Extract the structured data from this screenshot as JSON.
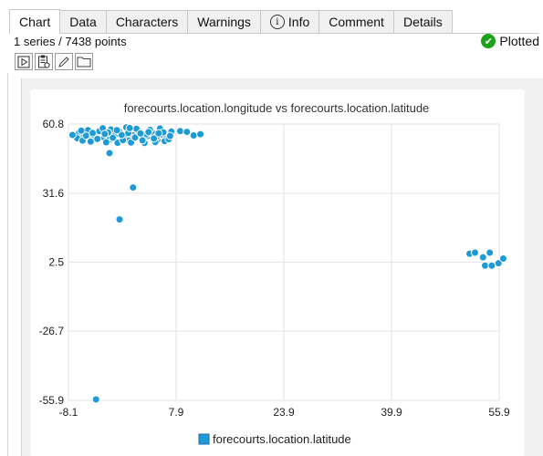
{
  "tabs": [
    {
      "label": "Chart",
      "active": true
    },
    {
      "label": "Data"
    },
    {
      "label": "Characters"
    },
    {
      "label": "Warnings"
    },
    {
      "label": "Info",
      "icon": "info-icon"
    },
    {
      "label": "Comment"
    },
    {
      "label": "Details"
    }
  ],
  "status": {
    "series_summary": "1 series / 7438 points",
    "plotted_label": "Plotted",
    "plotted_icon": "check-circle-icon",
    "plotted_color": "#1aa21a"
  },
  "toolbar": {
    "buttons": [
      {
        "name": "play-button",
        "icon": "play-icon"
      },
      {
        "name": "clipboard-button",
        "icon": "clipboard-icon"
      },
      {
        "name": "edit-button",
        "icon": "pencil-icon"
      },
      {
        "name": "folder-button",
        "icon": "folder-icon"
      }
    ]
  },
  "chart_data": {
    "type": "scatter",
    "title": "forecourts.location.longitude vs forecourts.location.latitude",
    "xlabel": "",
    "ylabel": "",
    "xlim": [
      -8.1,
      55.9
    ],
    "ylim": [
      -55.9,
      60.8
    ],
    "x_ticks": [
      "-8.1",
      "7.9",
      "23.9",
      "39.9",
      "55.9"
    ],
    "y_ticks": [
      "60.8",
      "31.6",
      "2.5",
      "-26.7",
      "-55.9"
    ],
    "grid": true,
    "legend_position": "bottom",
    "point_color": "#1e9ad6",
    "series": [
      {
        "name": "forecourts.location.latitude",
        "points": [
          [
            -6.5,
            57.2
          ],
          [
            -5.8,
            55.6
          ],
          [
            -5.0,
            54.9
          ],
          [
            -4.3,
            56.1
          ],
          [
            -3.5,
            57.8
          ],
          [
            -2.8,
            55.0
          ],
          [
            -2.0,
            54.2
          ],
          [
            -1.2,
            56.3
          ],
          [
            -0.5,
            57.5
          ],
          [
            0.2,
            55.2
          ],
          [
            0.9,
            53.8
          ],
          [
            1.6,
            56.0
          ],
          [
            2.3,
            57.9
          ],
          [
            3.0,
            54.6
          ],
          [
            3.7,
            55.8
          ],
          [
            4.4,
            57.0
          ],
          [
            5.1,
            54.0
          ],
          [
            5.8,
            56.4
          ],
          [
            6.5,
            55.3
          ],
          [
            7.2,
            57.6
          ],
          [
            -6.8,
            54.8
          ],
          [
            -4.8,
            53.4
          ],
          [
            -2.5,
            53.1
          ],
          [
            -0.8,
            52.9
          ],
          [
            1.2,
            53.0
          ],
          [
            3.2,
            52.8
          ],
          [
            4.8,
            53.2
          ],
          [
            6.2,
            53.6
          ],
          [
            -1.8,
            58.5
          ],
          [
            0.5,
            59.4
          ],
          [
            2.0,
            58.8
          ],
          [
            -3.0,
            59.0
          ],
          [
            -5.2,
            58.2
          ],
          [
            4.0,
            58.3
          ],
          [
            5.5,
            58.9
          ],
          [
            -7.5,
            56.2
          ],
          [
            -6.0,
            53.8
          ],
          [
            -3.8,
            54.5
          ],
          [
            -1.5,
            55.0
          ],
          [
            0.0,
            54.0
          ],
          [
            1.8,
            55.1
          ],
          [
            3.5,
            56.5
          ],
          [
            5.0,
            55.5
          ],
          [
            6.8,
            54.4
          ],
          [
            -4.5,
            57.0
          ],
          [
            -2.2,
            57.2
          ],
          [
            0.8,
            57.0
          ],
          [
            2.6,
            56.8
          ],
          [
            -0.2,
            56.2
          ],
          [
            2.9,
            53.9
          ],
          [
            -5.5,
            55.9
          ],
          [
            4.6,
            54.7
          ],
          [
            6.0,
            57.3
          ],
          [
            7.0,
            55.8
          ],
          [
            -6.2,
            58.0
          ],
          [
            1.0,
            59.1
          ],
          [
            -2.7,
            56.6
          ],
          [
            3.8,
            57.4
          ],
          [
            5.3,
            56.9
          ],
          [
            -0.9,
            58.2
          ],
          [
            8.5,
            57.8
          ],
          [
            10.5,
            56.0
          ],
          [
            9.5,
            57.5
          ],
          [
            11.5,
            56.5
          ],
          [
            -2.0,
            48.5
          ],
          [
            1.5,
            34.0
          ],
          [
            -0.5,
            20.5
          ],
          [
            -4.0,
            -55.5
          ],
          [
            51.5,
            6.0
          ],
          [
            52.3,
            6.5
          ],
          [
            53.5,
            4.5
          ],
          [
            54.5,
            6.5
          ],
          [
            53.8,
            1.0
          ],
          [
            54.8,
            1.0
          ],
          [
            55.8,
            2.0
          ],
          [
            56.5,
            4.0
          ]
        ]
      }
    ]
  }
}
